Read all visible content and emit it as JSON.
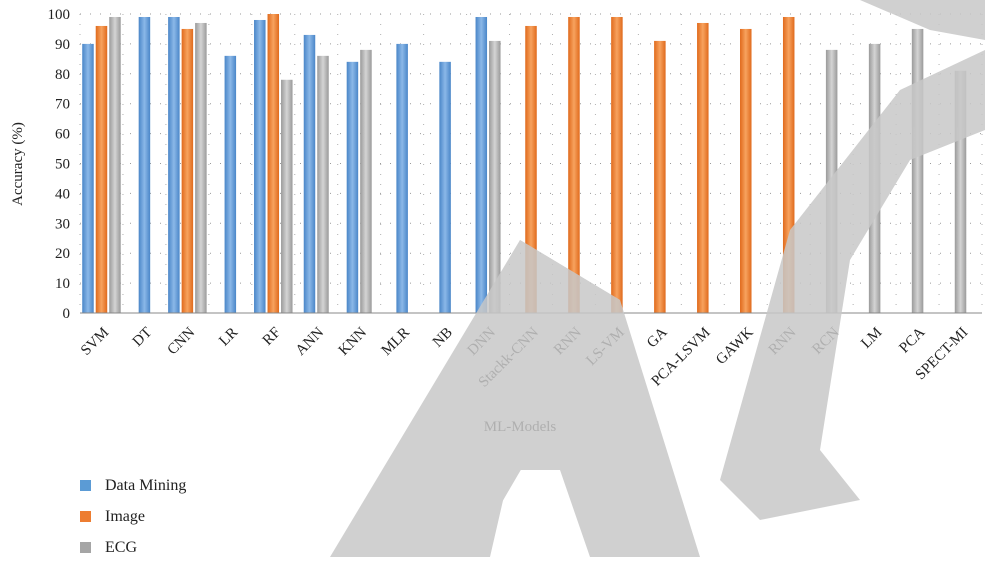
{
  "chart_data": {
    "type": "bar",
    "xlabel": "ML-Models",
    "ylabel": "Accuracy (%)",
    "ylim": [
      0,
      100
    ],
    "yticks": [
      0,
      10,
      20,
      30,
      40,
      50,
      60,
      70,
      80,
      90,
      100
    ],
    "grid": "dotted",
    "legend_position": "bottom-left",
    "categories": [
      "SVM",
      "DT",
      "CNN",
      "LR",
      "RF",
      "ANN",
      "KNN",
      "MLR",
      "NB",
      "DNN",
      "Stackk-CNN",
      "RNN",
      "LS-VM",
      "GA",
      "PCA-LSVM",
      "GAWK",
      "RNN",
      "RCN",
      "LM",
      "PCA",
      "SPECT-MI"
    ],
    "series": [
      {
        "name": "Data Mining",
        "color": "#5b9bd5",
        "values": [
          90,
          99,
          99,
          86,
          98,
          93,
          84,
          90,
          84,
          99,
          null,
          null,
          null,
          null,
          null,
          null,
          null,
          null,
          null,
          null,
          null
        ]
      },
      {
        "name": "Image",
        "color": "#ed7d31",
        "values": [
          96,
          null,
          95,
          null,
          100,
          null,
          null,
          null,
          null,
          null,
          96,
          99,
          99,
          91,
          97,
          95,
          99,
          null,
          null,
          null,
          null
        ]
      },
      {
        "name": "ECG",
        "color": "#a5a5a5",
        "values": [
          99,
          null,
          97,
          null,
          78,
          86,
          88,
          null,
          null,
          91,
          null,
          null,
          null,
          null,
          null,
          null,
          null,
          88,
          90,
          95,
          81
        ]
      }
    ]
  }
}
